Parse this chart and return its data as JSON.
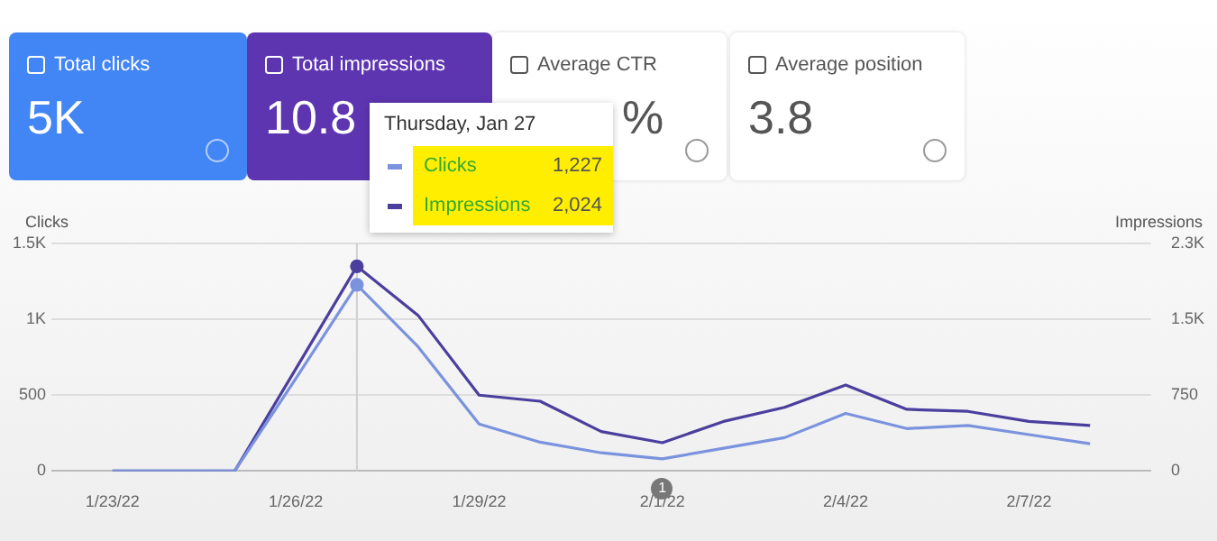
{
  "chart_data": {
    "type": "line",
    "ylabel": "Clicks",
    "y2label": "Impressions",
    "x": [
      "--01-23",
      "--01-24",
      "--01-25",
      "--01-26",
      "--01-27",
      "--01-28",
      "--01-29",
      "--01-30",
      "--01-31",
      "--02-01",
      "--02-02",
      "--02-03",
      "--02-04",
      "--02-05",
      "--02-06",
      "--02-07",
      "--02-08"
    ],
    "series": [
      {
        "name": "Clicks",
        "color": "#7b93de",
        "values": [
          0,
          0,
          0,
          610,
          1227,
          820,
          310,
          190,
          120,
          80,
          150,
          220,
          380,
          280,
          300,
          240,
          180
        ]
      },
      {
        "name": "Impressions",
        "color": "#4b3f9e",
        "axis": "y2",
        "values": [
          0,
          0,
          0,
          1010,
          2024,
          1540,
          750,
          690,
          390,
          280,
          490,
          630,
          850,
          610,
          590,
          490,
          450
        ]
      }
    ],
    "xlim": [
      "--01-22",
      "--02-09"
    ],
    "xticks": [
      {
        "value": "--01-23",
        "label": "1/23/22"
      },
      {
        "value": "--01-26",
        "label": "1/26/22"
      },
      {
        "value": "--01-29",
        "label": "1/29/22"
      },
      {
        "value": "--02-01",
        "label": "2/1/22"
      },
      {
        "value": "--02-04",
        "label": "2/4/22"
      },
      {
        "value": "--02-07",
        "label": "2/7/22"
      }
    ],
    "ylim": [
      0,
      1500
    ],
    "yticks": [
      0,
      500,
      {
        "value": 1000,
        "label": "1K"
      },
      {
        "value": 1500,
        "label": "1.5K"
      }
    ],
    "y2lim": [
      0,
      2250
    ],
    "y2ticks": [
      0,
      750,
      {
        "value": 1500,
        "label": "1.5K"
      },
      {
        "value": 2250,
        "label": "2.3K"
      }
    ],
    "grid": "y",
    "legend": "top",
    "marker": "none",
    "line_style": "solid",
    "ref_lines": [
      {
        "axis": "x",
        "value": "--01-27",
        "color": "#d0d0d0"
      }
    ],
    "annotations": [
      "Total clicks",
      "5K",
      "Total impressions",
      "10.8",
      "Average CTR",
      "%",
      "Average position",
      "3.8",
      "Thursday, Jan 27",
      "1,227",
      "2,024",
      "1"
    ]
  }
}
